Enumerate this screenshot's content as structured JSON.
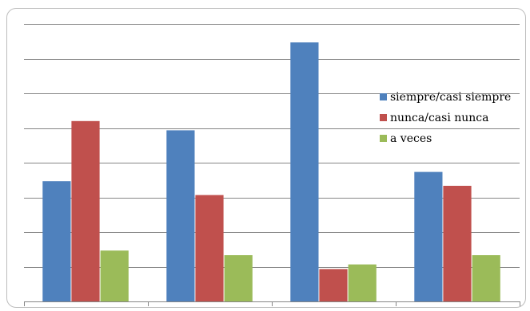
{
  "chart_data": {
    "type": "bar",
    "categories": [
      "",
      "",
      "",
      ""
    ],
    "series": [
      {
        "name": "siempre/casi siempre",
        "color": "#4f81bd",
        "values": [
          26,
          37,
          56,
          28
        ]
      },
      {
        "name": "nunca/casi nunca",
        "color": "#c0504d",
        "values": [
          39,
          23,
          7,
          25
        ]
      },
      {
        "name": "a veces",
        "color": "#9bbb59",
        "values": [
          11,
          10,
          8,
          10
        ]
      }
    ],
    "ylim": [
      0,
      60
    ],
    "y_tick_step": 7.5,
    "grid": true,
    "legend_position": "right"
  }
}
